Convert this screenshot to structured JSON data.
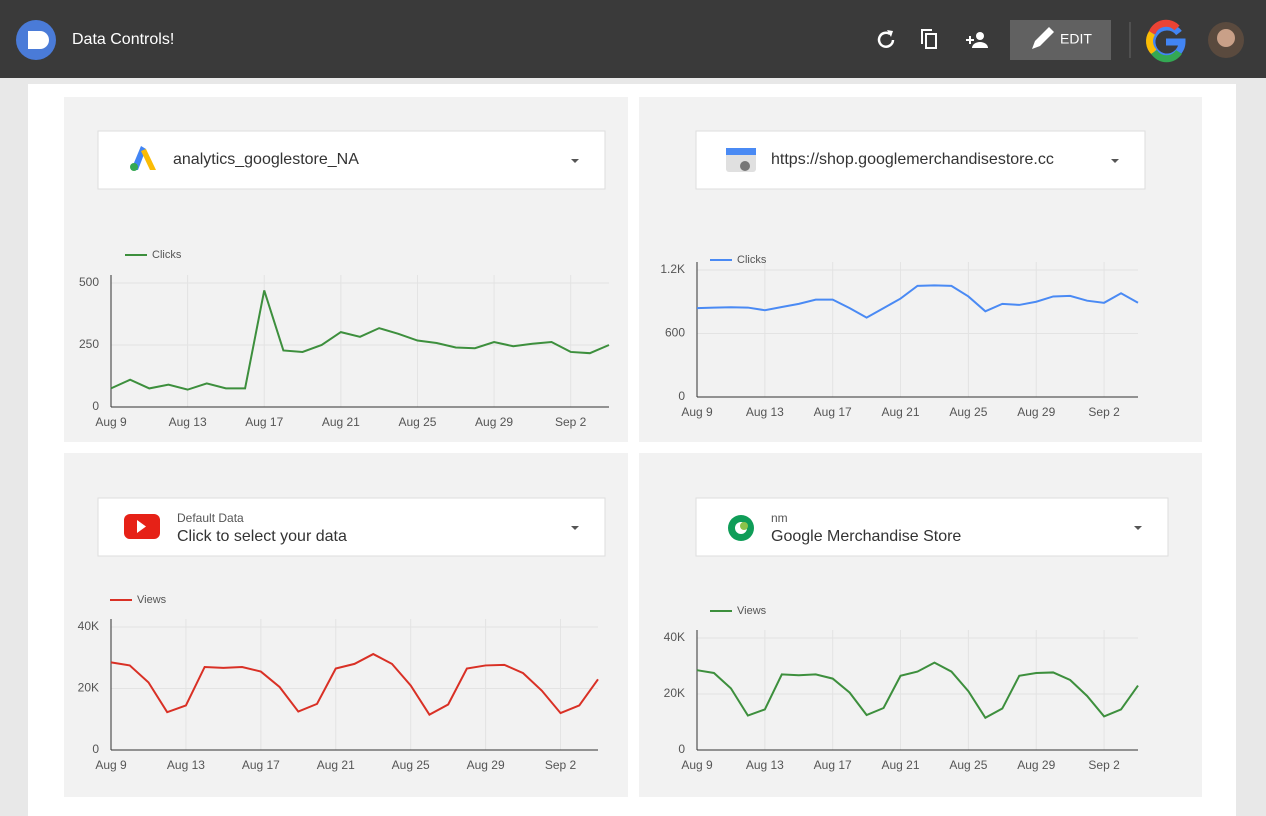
{
  "header": {
    "title": "Data Controls!",
    "edit_button": "EDIT"
  },
  "panels": [
    {
      "selector": {
        "value": "analytics_googlestore_NA"
      },
      "chart": {
        "type": "line",
        "categories": [
          "Aug 9",
          null,
          null,
          null,
          "Aug 13",
          null,
          null,
          null,
          "Aug 17",
          null,
          null,
          null,
          "Aug 21",
          null,
          null,
          null,
          "Aug 25",
          null,
          null,
          null,
          "Aug 29",
          null,
          null,
          null,
          "Sep 2",
          null,
          null
        ],
        "series": [
          {
            "name": "Clicks",
            "color": "#3d8f3d",
            "values": [
              75,
              110,
              75,
              90,
              70,
              95,
              75,
              75,
              470,
              228,
              222,
              250,
              302,
              283,
              318,
              295,
              268,
              258,
              240,
              237,
              262,
              245,
              255,
              262,
              222,
              217,
              250
            ]
          }
        ],
        "ylim": [
          0,
          500
        ],
        "yticks": [
          0,
          250,
          500
        ],
        "grid": true
      }
    },
    {
      "selector": {
        "value": "https://shop.googlemerchandisestore.cc"
      },
      "chart": {
        "type": "line",
        "categories": [
          "Aug 9",
          null,
          null,
          null,
          "Aug 13",
          null,
          null,
          null,
          "Aug 17",
          null,
          null,
          null,
          "Aug 21",
          null,
          null,
          null,
          "Aug 25",
          null,
          null,
          null,
          "Aug 29",
          null,
          null,
          null,
          "Sep 2",
          null,
          null
        ],
        "series": [
          {
            "name": "Clicks",
            "color": "#4a8af4",
            "values": [
              840,
              845,
              848,
              845,
              820,
              850,
              880,
              920,
              920,
              840,
              750,
              840,
              930,
              1050,
              1055,
              1050,
              950,
              810,
              880,
              870,
              900,
              950,
              955,
              910,
              890,
              980,
              890
            ]
          }
        ],
        "ylim": [
          0,
          1200
        ],
        "yticks": [
          0,
          600,
          {
            "value": 1200,
            "label": "1.2K"
          }
        ],
        "grid": true
      }
    },
    {
      "selector": {
        "label": "Default Data",
        "value": "Click to select your data"
      },
      "chart": {
        "type": "line",
        "categories": [
          "Aug 9",
          null,
          null,
          null,
          "Aug 13",
          null,
          null,
          null,
          "Aug 17",
          null,
          null,
          null,
          "Aug 21",
          null,
          null,
          null,
          "Aug 25",
          null,
          null,
          null,
          "Aug 29",
          null,
          null,
          null,
          "Sep 2",
          null,
          null
        ],
        "series": [
          {
            "name": "Views",
            "color": "#d93025",
            "values": [
              28500,
              27500,
              22000,
              12300,
              14500,
              27000,
              26700,
              27000,
              25500,
              20500,
              12500,
              15000,
              26500,
              28000,
              31200,
              28000,
              21000,
              11500,
              14800,
              26500,
              27500,
              27700,
              25000,
              19300,
              12000,
              14500,
              23000
            ]
          }
        ],
        "ylim": [
          0,
          40000
        ],
        "yticks": [
          0,
          {
            "value": 20000,
            "label": "20K"
          },
          {
            "value": 40000,
            "label": "40K"
          }
        ],
        "grid": true
      }
    },
    {
      "selector": {
        "label": "nm",
        "value": "Google Merchandise Store"
      },
      "chart": {
        "type": "line",
        "categories": [
          "Aug 9",
          null,
          null,
          null,
          "Aug 13",
          null,
          null,
          null,
          "Aug 17",
          null,
          null,
          null,
          "Aug 21",
          null,
          null,
          null,
          "Aug 25",
          null,
          null,
          null,
          "Aug 29",
          null,
          null,
          null,
          "Sep 2",
          null,
          null
        ],
        "series": [
          {
            "name": "Views",
            "color": "#3d8f3d",
            "values": [
              28500,
              27500,
              22000,
              12300,
              14500,
              27000,
              26700,
              27000,
              25500,
              20500,
              12500,
              15000,
              26500,
              28000,
              31200,
              28000,
              21000,
              11500,
              14800,
              26500,
              27500,
              27700,
              25000,
              19300,
              12000,
              14500,
              23000
            ]
          }
        ],
        "ylim": [
          0,
          40000
        ],
        "yticks": [
          0,
          {
            "value": 20000,
            "label": "20K"
          },
          {
            "value": 40000,
            "label": "40K"
          }
        ],
        "grid": true
      }
    }
  ]
}
